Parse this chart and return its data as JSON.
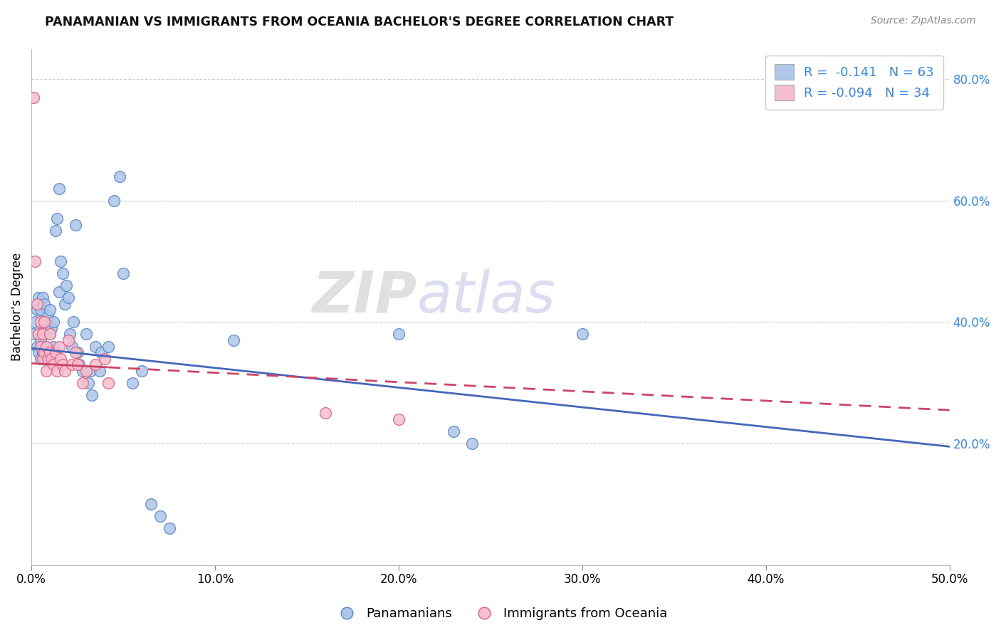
{
  "title": "PANAMANIAN VS IMMIGRANTS FROM OCEANIA BACHELOR'S DEGREE CORRELATION CHART",
  "source": "Source: ZipAtlas.com",
  "ylabel": "Bachelor's Degree",
  "xlim": [
    0.0,
    0.5
  ],
  "ylim": [
    0.0,
    0.85
  ],
  "xticks": [
    0.0,
    0.1,
    0.2,
    0.3,
    0.4,
    0.5
  ],
  "xtick_labels": [
    "0.0%",
    "10.0%",
    "20.0%",
    "30.0%",
    "40.0%",
    "50.0%"
  ],
  "yticks": [
    0.2,
    0.4,
    0.6,
    0.8
  ],
  "ytick_labels": [
    "20.0%",
    "40.0%",
    "60.0%",
    "80.0%"
  ],
  "blue_R": -0.141,
  "blue_N": 63,
  "pink_R": -0.094,
  "pink_N": 34,
  "blue_color": "#aec6e8",
  "pink_color": "#f5bfcf",
  "blue_edge": "#5588cc",
  "pink_edge": "#e06080",
  "trend_blue": "#4466bb",
  "trend_pink": "#cc4466",
  "legend_label_blue": "Panamanians",
  "legend_label_pink": "Immigrants from Oceania",
  "watermark_zip": "ZIP",
  "watermark_atlas": "atlas",
  "blue_x": [
    0.001,
    0.002,
    0.003,
    0.003,
    0.004,
    0.004,
    0.005,
    0.005,
    0.005,
    0.006,
    0.006,
    0.006,
    0.007,
    0.007,
    0.007,
    0.008,
    0.008,
    0.009,
    0.009,
    0.01,
    0.01,
    0.01,
    0.011,
    0.011,
    0.012,
    0.012,
    0.013,
    0.014,
    0.015,
    0.015,
    0.016,
    0.017,
    0.018,
    0.019,
    0.02,
    0.021,
    0.022,
    0.023,
    0.024,
    0.025,
    0.026,
    0.028,
    0.03,
    0.031,
    0.032,
    0.033,
    0.035,
    0.037,
    0.038,
    0.042,
    0.045,
    0.048,
    0.05,
    0.055,
    0.06,
    0.065,
    0.07,
    0.075,
    0.11,
    0.2,
    0.23,
    0.24,
    0.3
  ],
  "blue_y": [
    0.38,
    0.4,
    0.36,
    0.42,
    0.35,
    0.44,
    0.34,
    0.37,
    0.42,
    0.35,
    0.38,
    0.44,
    0.34,
    0.39,
    0.43,
    0.36,
    0.4,
    0.34,
    0.41,
    0.35,
    0.38,
    0.42,
    0.34,
    0.39,
    0.36,
    0.4,
    0.55,
    0.57,
    0.62,
    0.45,
    0.5,
    0.48,
    0.43,
    0.46,
    0.44,
    0.38,
    0.36,
    0.4,
    0.56,
    0.35,
    0.33,
    0.32,
    0.38,
    0.3,
    0.32,
    0.28,
    0.36,
    0.32,
    0.35,
    0.36,
    0.6,
    0.64,
    0.48,
    0.3,
    0.32,
    0.1,
    0.08,
    0.06,
    0.37,
    0.38,
    0.22,
    0.2,
    0.38
  ],
  "pink_x": [
    0.001,
    0.002,
    0.003,
    0.004,
    0.005,
    0.005,
    0.006,
    0.006,
    0.007,
    0.007,
    0.008,
    0.008,
    0.009,
    0.01,
    0.01,
    0.011,
    0.012,
    0.013,
    0.014,
    0.015,
    0.016,
    0.017,
    0.018,
    0.02,
    0.022,
    0.024,
    0.025,
    0.028,
    0.03,
    0.035,
    0.04,
    0.042,
    0.16,
    0.2
  ],
  "pink_y": [
    0.77,
    0.5,
    0.43,
    0.38,
    0.36,
    0.4,
    0.34,
    0.38,
    0.35,
    0.4,
    0.32,
    0.36,
    0.34,
    0.35,
    0.38,
    0.34,
    0.33,
    0.35,
    0.32,
    0.36,
    0.34,
    0.33,
    0.32,
    0.37,
    0.33,
    0.35,
    0.33,
    0.3,
    0.32,
    0.33,
    0.34,
    0.3,
    0.25,
    0.24
  ]
}
